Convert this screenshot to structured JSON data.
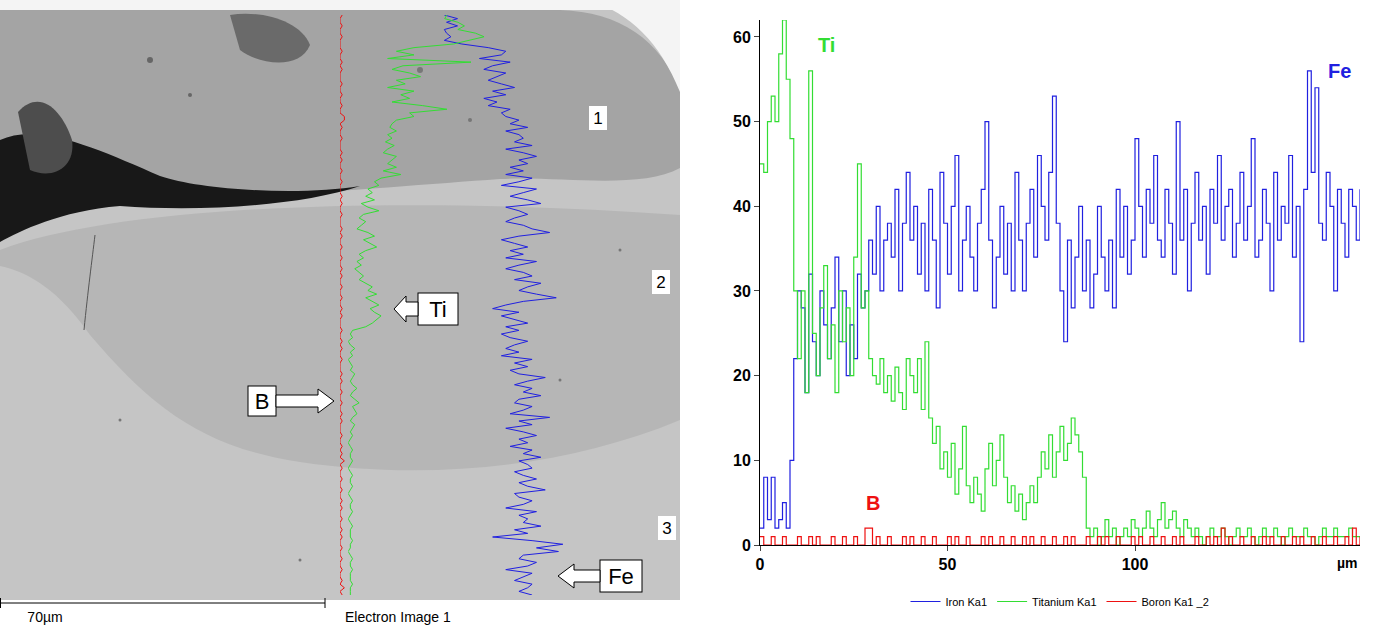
{
  "chart_data": {
    "type": "line",
    "line_style": "steps",
    "xlabel": "µm",
    "x": [
      0,
      1,
      2,
      3,
      4,
      5,
      6,
      7,
      8,
      9,
      10,
      11,
      12,
      13,
      14,
      15,
      16,
      17,
      18,
      19,
      20,
      21,
      22,
      23,
      24,
      25,
      26,
      27,
      28,
      29,
      30,
      31,
      32,
      33,
      34,
      35,
      36,
      37,
      38,
      39,
      40,
      41,
      42,
      43,
      44,
      45,
      46,
      47,
      48,
      49,
      50,
      51,
      52,
      53,
      54,
      55,
      56,
      57,
      58,
      59,
      60,
      61,
      62,
      63,
      64,
      65,
      66,
      67,
      68,
      69,
      70,
      71,
      72,
      73,
      74,
      75,
      76,
      77,
      78,
      79,
      80,
      81,
      82,
      83,
      84,
      85,
      86,
      87,
      88,
      89,
      90,
      91,
      92,
      93,
      94,
      95,
      96,
      97,
      98,
      99,
      100,
      101,
      102,
      103,
      104,
      105,
      106,
      107,
      108,
      109,
      110,
      111,
      112,
      113,
      114,
      115,
      116,
      117,
      118,
      119,
      120,
      121,
      122,
      123,
      124,
      125,
      126,
      127,
      128,
      129,
      130,
      131,
      132,
      133,
      134,
      135,
      136,
      137,
      138,
      139,
      140,
      141,
      142,
      143,
      144,
      145,
      146,
      147,
      148,
      149,
      150,
      151,
      152,
      153,
      154,
      155,
      156,
      157,
      158,
      159,
      160
    ],
    "series": [
      {
        "name": "Iron Ka1",
        "color": "#2020e0",
        "values": [
          2,
          8,
          3,
          8,
          2,
          3,
          5,
          2,
          10,
          22,
          30,
          28,
          18,
          32,
          24,
          20,
          30,
          26,
          22,
          28,
          34,
          24,
          30,
          20,
          26,
          22,
          32,
          28,
          30,
          36,
          32,
          40,
          30,
          36,
          38,
          34,
          42,
          30,
          38,
          44,
          36,
          40,
          32,
          38,
          30,
          42,
          36,
          28,
          44,
          38,
          32,
          40,
          46,
          30,
          36,
          40,
          34,
          30,
          38,
          42,
          50,
          36,
          28,
          34,
          40,
          32,
          38,
          30,
          44,
          36,
          30,
          38,
          42,
          34,
          46,
          40,
          36,
          44,
          53,
          38,
          30,
          24,
          36,
          28,
          34,
          40,
          30,
          36,
          28,
          32,
          40,
          34,
          30,
          36,
          28,
          42,
          34,
          40,
          32,
          36,
          48,
          40,
          34,
          42,
          38,
          46,
          36,
          34,
          42,
          38,
          32,
          50,
          36,
          42,
          30,
          38,
          44,
          36,
          40,
          32,
          42,
          38,
          46,
          36,
          40,
          42,
          34,
          38,
          44,
          36,
          40,
          48,
          34,
          36,
          42,
          38,
          30,
          44,
          36,
          40,
          38,
          46,
          34,
          40,
          24,
          42,
          56,
          44,
          54,
          38,
          36,
          44,
          40,
          30,
          42,
          38,
          34,
          42,
          40,
          36,
          42
        ]
      },
      {
        "name": "Titanium Ka1",
        "color": "#33dd33",
        "values": [
          45,
          44,
          50,
          53,
          50,
          58,
          62,
          55,
          48,
          30,
          22,
          30,
          18,
          56,
          25,
          20,
          28,
          33,
          22,
          26,
          18,
          30,
          24,
          28,
          20,
          34,
          45,
          28,
          30,
          22,
          20,
          19,
          22,
          18,
          20,
          17,
          21,
          18,
          16,
          22,
          20,
          18,
          22,
          16,
          24,
          15,
          12,
          14,
          9,
          11,
          8,
          12,
          6,
          9,
          14,
          7,
          5,
          8,
          6,
          4,
          9,
          12,
          7,
          10,
          13,
          8,
          5,
          7,
          4,
          6,
          3,
          5,
          7,
          5,
          8,
          11,
          9,
          13,
          8,
          11,
          14,
          10,
          12,
          15,
          13,
          11,
          8,
          2,
          1,
          2,
          0,
          1,
          3,
          1,
          2,
          0,
          1,
          2,
          1,
          3,
          2,
          1,
          2,
          4,
          2,
          1,
          3,
          5,
          2,
          3,
          4,
          2,
          1,
          3,
          2,
          1,
          2,
          1,
          0,
          1,
          2,
          1,
          1,
          2,
          1,
          0,
          1,
          2,
          1,
          1,
          2,
          1,
          0,
          1,
          2,
          1,
          1,
          2,
          1,
          0,
          1,
          2,
          1,
          1,
          1,
          2,
          1,
          1,
          0,
          1,
          2,
          1,
          1,
          2,
          1,
          1,
          1,
          2,
          1,
          1,
          1
        ]
      },
      {
        "name": "Boron Ka1 _2",
        "color": "#ee1111",
        "values": [
          1,
          0,
          0,
          1,
          0,
          0,
          1,
          0,
          0,
          0,
          1,
          0,
          0,
          1,
          0,
          1,
          0,
          0,
          0,
          1,
          0,
          0,
          1,
          0,
          0,
          1,
          0,
          0,
          2,
          2,
          0,
          1,
          0,
          0,
          1,
          0,
          0,
          0,
          1,
          0,
          1,
          0,
          0,
          1,
          0,
          0,
          1,
          0,
          0,
          0,
          1,
          0,
          1,
          0,
          0,
          1,
          0,
          0,
          0,
          1,
          0,
          1,
          0,
          0,
          1,
          0,
          0,
          1,
          0,
          0,
          1,
          0,
          1,
          0,
          0,
          1,
          0,
          0,
          1,
          0,
          0,
          1,
          0,
          1,
          0,
          0,
          0,
          1,
          0,
          0,
          1,
          0,
          1,
          0,
          0,
          1,
          0,
          0,
          0,
          1,
          0,
          1,
          0,
          0,
          1,
          0,
          0,
          1,
          0,
          0,
          1,
          0,
          1,
          0,
          0,
          0,
          1,
          0,
          0,
          1,
          0,
          1,
          0,
          2,
          0,
          1,
          0,
          0,
          1,
          0,
          0,
          1,
          0,
          0,
          1,
          0,
          1,
          0,
          0,
          1,
          0,
          0,
          1,
          0,
          1,
          0,
          0,
          1,
          0,
          0,
          1,
          0,
          0,
          1,
          0,
          0,
          1,
          0,
          2,
          0,
          1
        ]
      }
    ],
    "annotations": [
      {
        "text": "Ti",
        "x": 15,
        "y": 59,
        "color": "#33dd33"
      },
      {
        "text": "Fe",
        "x": 158,
        "y": 56,
        "color": "#2020e0"
      },
      {
        "text": "B",
        "x": 30,
        "y": 5,
        "color": "#ee1111"
      }
    ],
    "xlim": [
      0,
      160
    ],
    "xticks": [
      0,
      50,
      100
    ],
    "ylim": [
      0,
      62
    ],
    "yticks": [
      0,
      10,
      20,
      30,
      40,
      50,
      60
    ],
    "grid": false,
    "legend": "bottom"
  },
  "electron_image": {
    "title": "Electron Image 1",
    "scale_bar": "70µm",
    "regions": [
      "1",
      "2",
      "3"
    ],
    "profile_labels": [
      "Ti",
      "B",
      "Fe"
    ]
  }
}
